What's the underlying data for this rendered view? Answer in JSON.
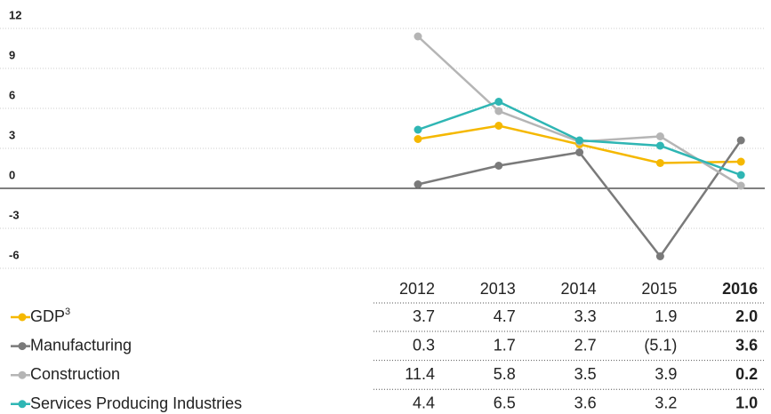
{
  "chart_data": {
    "type": "line",
    "categories": [
      "2012",
      "2013",
      "2014",
      "2015",
      "2016"
    ],
    "highlight_category": 4,
    "series": [
      {
        "name": "GDP",
        "name_note": "3",
        "color": "#f5b800",
        "values": [
          3.7,
          4.7,
          3.3,
          1.9,
          2.0
        ],
        "value_labels": [
          "3.7",
          "4.7",
          "3.3",
          "1.9",
          "2.0"
        ]
      },
      {
        "name": "Manufacturing",
        "color": "#7a7a7a",
        "values": [
          0.3,
          1.7,
          2.7,
          -5.1,
          3.6
        ],
        "value_labels": [
          "0.3",
          "1.7",
          "2.7",
          "(5.1)",
          "3.6"
        ]
      },
      {
        "name": "Construction",
        "color": "#b5b5b5",
        "values": [
          11.4,
          5.8,
          3.5,
          3.9,
          0.2
        ],
        "value_labels": [
          "11.4",
          "5.8",
          "3.5",
          "3.9",
          "0.2"
        ]
      },
      {
        "name": "Services Producing Industries",
        "color": "#2fb6b4",
        "values": [
          4.4,
          6.5,
          3.6,
          3.2,
          1.0
        ],
        "value_labels": [
          "4.4",
          "6.5",
          "3.6",
          "3.2",
          "1.0"
        ]
      }
    ],
    "ylim": [
      -6,
      12
    ],
    "yticks": [
      12,
      9,
      6,
      3,
      0,
      -3,
      -6
    ],
    "grid": true
  }
}
